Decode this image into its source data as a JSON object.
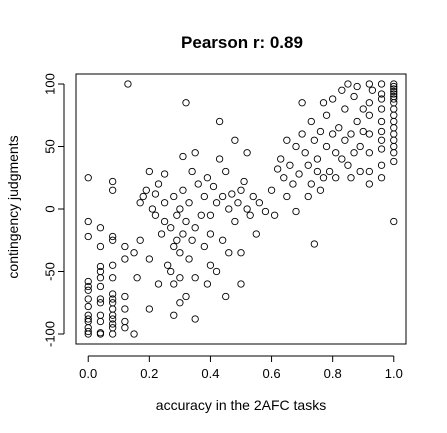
{
  "chart_data": {
    "type": "scatter",
    "title": "Pearson r: 0.89",
    "xlabel": "accuracy in the 2AFC tasks",
    "ylabel": "contingency judgments",
    "xlim": [
      -0.04,
      1.04
    ],
    "ylim": [
      -108,
      108
    ],
    "xticks": [
      0.0,
      0.2,
      0.4,
      0.6,
      0.8,
      1.0
    ],
    "xtick_labels": [
      "0.0",
      "0.2",
      "0.4",
      "0.6",
      "0.8",
      "1.0"
    ],
    "yticks": [
      -100,
      -50,
      0,
      50,
      100
    ],
    "ytick_labels": [
      "-100",
      "-50",
      "0",
      "50",
      "100"
    ],
    "grid": false,
    "marker": "open-circle",
    "points": [
      [
        0.0,
        -100
      ],
      [
        0.0,
        -98
      ],
      [
        0.0,
        -95
      ],
      [
        0.0,
        -90
      ],
      [
        0.0,
        -88
      ],
      [
        0.0,
        -85
      ],
      [
        0.0,
        -78
      ],
      [
        0.0,
        -72
      ],
      [
        0.0,
        -65
      ],
      [
        0.0,
        -62
      ],
      [
        0.0,
        -58
      ],
      [
        0.0,
        -22
      ],
      [
        0.0,
        -10
      ],
      [
        0.0,
        25
      ],
      [
        0.04,
        -100
      ],
      [
        0.04,
        -99
      ],
      [
        0.04,
        -90
      ],
      [
        0.04,
        -85
      ],
      [
        0.04,
        -75
      ],
      [
        0.04,
        -72
      ],
      [
        0.04,
        -62
      ],
      [
        0.04,
        -55
      ],
      [
        0.04,
        -50
      ],
      [
        0.04,
        -46
      ],
      [
        0.04,
        -30
      ],
      [
        0.04,
        -15
      ],
      [
        0.08,
        -100
      ],
      [
        0.08,
        -95
      ],
      [
        0.08,
        -92
      ],
      [
        0.08,
        -88
      ],
      [
        0.08,
        -85
      ],
      [
        0.08,
        -80
      ],
      [
        0.08,
        -75
      ],
      [
        0.08,
        -72
      ],
      [
        0.08,
        -68
      ],
      [
        0.08,
        -55
      ],
      [
        0.08,
        -45
      ],
      [
        0.08,
        -25
      ],
      [
        0.08,
        -22
      ],
      [
        0.08,
        15
      ],
      [
        0.08,
        22
      ],
      [
        0.12,
        -95
      ],
      [
        0.12,
        -90
      ],
      [
        0.12,
        -80
      ],
      [
        0.12,
        -70
      ],
      [
        0.12,
        -40
      ],
      [
        0.12,
        -30
      ],
      [
        0.13,
        100
      ],
      [
        0.15,
        -100
      ],
      [
        0.15,
        -35
      ],
      [
        0.16,
        -55
      ],
      [
        0.17,
        -25
      ],
      [
        0.17,
        5
      ],
      [
        0.18,
        10
      ],
      [
        0.19,
        15
      ],
      [
        0.2,
        -80
      ],
      [
        0.2,
        -40
      ],
      [
        0.2,
        30
      ],
      [
        0.21,
        0
      ],
      [
        0.22,
        -5
      ],
      [
        0.22,
        12
      ],
      [
        0.23,
        -60
      ],
      [
        0.23,
        20
      ],
      [
        0.24,
        -20
      ],
      [
        0.25,
        -10
      ],
      [
        0.25,
        5
      ],
      [
        0.25,
        28
      ],
      [
        0.26,
        -45
      ],
      [
        0.27,
        -50
      ],
      [
        0.27,
        -15
      ],
      [
        0.28,
        -60
      ],
      [
        0.28,
        -30
      ],
      [
        0.28,
        10
      ],
      [
        0.28,
        -85
      ],
      [
        0.29,
        -25
      ],
      [
        0.29,
        -5
      ],
      [
        0.3,
        -75
      ],
      [
        0.3,
        -55
      ],
      [
        0.3,
        -35
      ],
      [
        0.3,
        0
      ],
      [
        0.31,
        -20
      ],
      [
        0.31,
        15
      ],
      [
        0.31,
        42
      ],
      [
        0.32,
        -70
      ],
      [
        0.32,
        -10
      ],
      [
        0.32,
        85
      ],
      [
        0.33,
        -40
      ],
      [
        0.33,
        5
      ],
      [
        0.34,
        -25
      ],
      [
        0.34,
        30
      ],
      [
        0.35,
        -88
      ],
      [
        0.35,
        -55
      ],
      [
        0.35,
        -15
      ],
      [
        0.35,
        45
      ],
      [
        0.36,
        20
      ],
      [
        0.37,
        -5
      ],
      [
        0.38,
        -30
      ],
      [
        0.38,
        10
      ],
      [
        0.39,
        -60
      ],
      [
        0.39,
        25
      ],
      [
        0.4,
        -45
      ],
      [
        0.4,
        -20
      ],
      [
        0.4,
        -5
      ],
      [
        0.41,
        18
      ],
      [
        0.42,
        -50
      ],
      [
        0.42,
        5
      ],
      [
        0.43,
        40
      ],
      [
        0.43,
        70
      ],
      [
        0.44,
        -25
      ],
      [
        0.44,
        10
      ],
      [
        0.45,
        -70
      ],
      [
        0.45,
        30
      ],
      [
        0.46,
        0
      ],
      [
        0.46,
        -35
      ],
      [
        0.47,
        12
      ],
      [
        0.48,
        -10
      ],
      [
        0.48,
        55
      ],
      [
        0.49,
        5
      ],
      [
        0.5,
        -35
      ],
      [
        0.5,
        -60
      ],
      [
        0.5,
        15
      ],
      [
        0.51,
        22
      ],
      [
        0.52,
        0
      ],
      [
        0.52,
        45
      ],
      [
        0.53,
        -5
      ],
      [
        0.54,
        10
      ],
      [
        0.55,
        -20
      ],
      [
        0.56,
        5
      ],
      [
        0.58,
        -2
      ],
      [
        0.6,
        15
      ],
      [
        0.61,
        -5
      ],
      [
        0.62,
        32
      ],
      [
        0.63,
        40
      ],
      [
        0.64,
        25
      ],
      [
        0.65,
        10
      ],
      [
        0.65,
        55
      ],
      [
        0.66,
        35
      ],
      [
        0.67,
        20
      ],
      [
        0.68,
        50
      ],
      [
        0.68,
        -2
      ],
      [
        0.69,
        28
      ],
      [
        0.7,
        60
      ],
      [
        0.7,
        85
      ],
      [
        0.71,
        45
      ],
      [
        0.72,
        10
      ],
      [
        0.72,
        35
      ],
      [
        0.73,
        20
      ],
      [
        0.73,
        70
      ],
      [
        0.74,
        55
      ],
      [
        0.74,
        -28
      ],
      [
        0.75,
        30
      ],
      [
        0.75,
        40
      ],
      [
        0.76,
        62
      ],
      [
        0.76,
        15
      ],
      [
        0.77,
        25
      ],
      [
        0.77,
        85
      ],
      [
        0.78,
        50
      ],
      [
        0.78,
        75
      ],
      [
        0.79,
        30
      ],
      [
        0.8,
        60
      ],
      [
        0.8,
        88
      ],
      [
        0.81,
        45
      ],
      [
        0.81,
        25
      ],
      [
        0.82,
        65
      ],
      [
        0.83,
        40
      ],
      [
        0.83,
        95
      ],
      [
        0.84,
        55
      ],
      [
        0.84,
        80
      ],
      [
        0.85,
        35
      ],
      [
        0.85,
        100
      ],
      [
        0.86,
        60
      ],
      [
        0.86,
        25
      ],
      [
        0.87,
        90
      ],
      [
        0.87,
        45
      ],
      [
        0.88,
        70
      ],
      [
        0.88,
        98
      ],
      [
        0.89,
        50
      ],
      [
        0.89,
        30
      ],
      [
        0.9,
        80
      ],
      [
        0.9,
        62
      ],
      [
        0.92,
        100
      ],
      [
        0.92,
        85
      ],
      [
        0.92,
        75
      ],
      [
        0.92,
        60
      ],
      [
        0.92,
        45
      ],
      [
        0.92,
        30
      ],
      [
        0.92,
        20
      ],
      [
        0.93,
        95
      ],
      [
        0.96,
        100
      ],
      [
        0.96,
        92
      ],
      [
        0.96,
        80
      ],
      [
        0.96,
        70
      ],
      [
        0.96,
        62
      ],
      [
        0.96,
        55
      ],
      [
        0.96,
        48
      ],
      [
        0.96,
        35
      ],
      [
        0.96,
        25
      ],
      [
        0.96,
        88
      ],
      [
        1.0,
        100
      ],
      [
        1.0,
        98
      ],
      [
        1.0,
        96
      ],
      [
        1.0,
        94
      ],
      [
        1.0,
        92
      ],
      [
        1.0,
        90
      ],
      [
        1.0,
        88
      ],
      [
        1.0,
        85
      ],
      [
        1.0,
        80
      ],
      [
        1.0,
        75
      ],
      [
        1.0,
        70
      ],
      [
        1.0,
        65
      ],
      [
        1.0,
        60
      ],
      [
        1.0,
        55
      ],
      [
        1.0,
        50
      ],
      [
        1.0,
        45
      ],
      [
        1.0,
        38
      ],
      [
        1.0,
        -10
      ]
    ]
  }
}
